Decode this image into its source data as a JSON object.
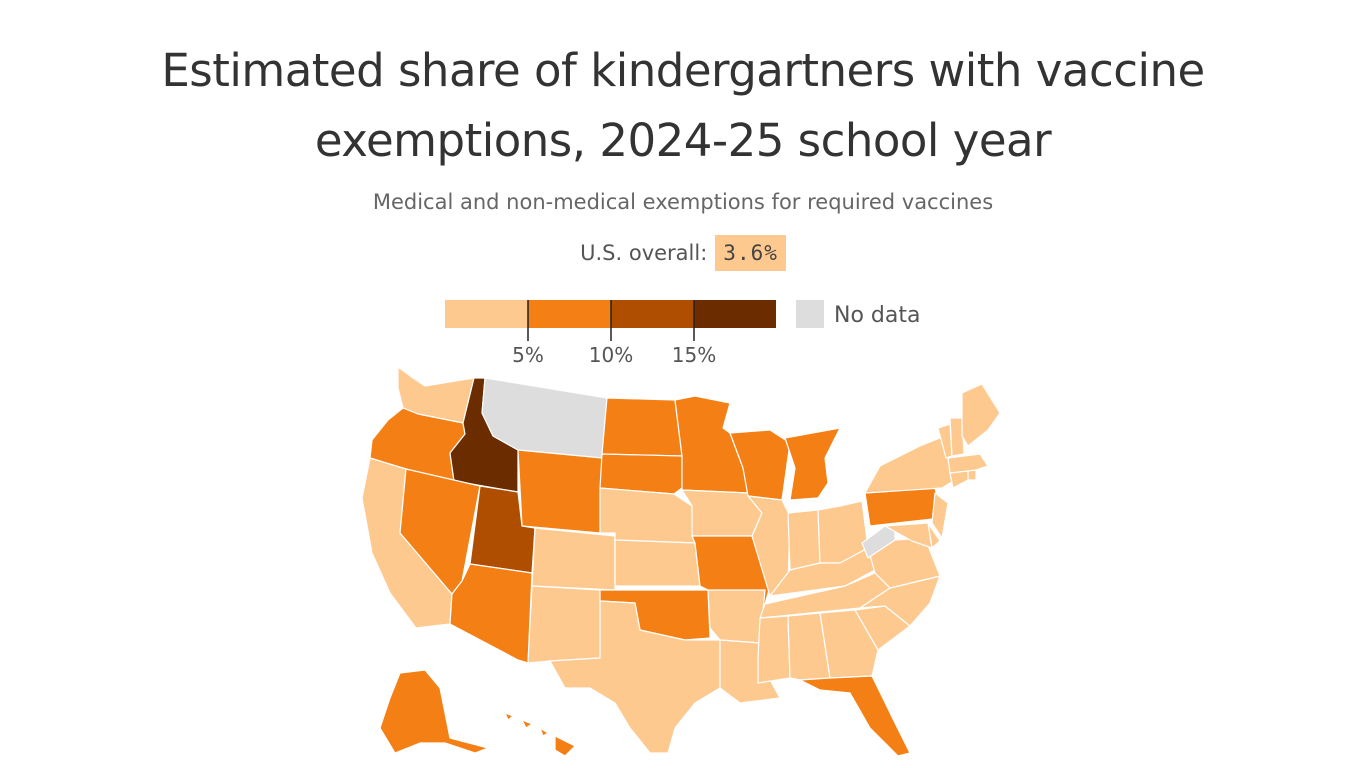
{
  "title_line1": "Estimated share of kindergartners with vaccine",
  "title_line2": "exemptions, 2024-25 school year",
  "subtitle": "Medical and non-medical exemptions for required vaccines",
  "overall": {
    "label": "U.S. overall:",
    "value": "3.6%"
  },
  "legend": {
    "bins": [
      {
        "range": "0–5%",
        "color": "#fec98f"
      },
      {
        "range": "5–10%",
        "color": "#f47f14"
      },
      {
        "range": "10–15%",
        "color": "#b04e00"
      },
      {
        "range": "15%+",
        "color": "#6b2c00"
      }
    ],
    "ticks": [
      "5%",
      "10%",
      "15%"
    ],
    "no_data": {
      "label": "No data",
      "color": "#dddddd"
    }
  },
  "map": {
    "color_scale": {
      "low": "#fec98f",
      "mid": "#f47f14",
      "high": "#b04e00",
      "very_high": "#6b2c00",
      "no_data": "#dddddd"
    },
    "states": [
      {
        "id": "WA",
        "name": "Washington",
        "bin": "low"
      },
      {
        "id": "OR",
        "name": "Oregon",
        "bin": "mid"
      },
      {
        "id": "CA",
        "name": "California",
        "bin": "low"
      },
      {
        "id": "ID",
        "name": "Idaho",
        "bin": "very_high"
      },
      {
        "id": "NV",
        "name": "Nevada",
        "bin": "mid"
      },
      {
        "id": "MT",
        "name": "Montana",
        "bin": "no_data"
      },
      {
        "id": "WY",
        "name": "Wyoming",
        "bin": "mid"
      },
      {
        "id": "UT",
        "name": "Utah",
        "bin": "high"
      },
      {
        "id": "AZ",
        "name": "Arizona",
        "bin": "mid"
      },
      {
        "id": "CO",
        "name": "Colorado",
        "bin": "low"
      },
      {
        "id": "NM",
        "name": "New Mexico",
        "bin": "low"
      },
      {
        "id": "ND",
        "name": "North Dakota",
        "bin": "mid"
      },
      {
        "id": "SD",
        "name": "South Dakota",
        "bin": "mid"
      },
      {
        "id": "NE",
        "name": "Nebraska",
        "bin": "low"
      },
      {
        "id": "KS",
        "name": "Kansas",
        "bin": "low"
      },
      {
        "id": "OK",
        "name": "Oklahoma",
        "bin": "mid"
      },
      {
        "id": "TX",
        "name": "Texas",
        "bin": "low"
      },
      {
        "id": "MN",
        "name": "Minnesota",
        "bin": "mid"
      },
      {
        "id": "IA",
        "name": "Iowa",
        "bin": "low"
      },
      {
        "id": "MO",
        "name": "Missouri",
        "bin": "mid"
      },
      {
        "id": "AR",
        "name": "Arkansas",
        "bin": "low"
      },
      {
        "id": "LA",
        "name": "Louisiana",
        "bin": "low"
      },
      {
        "id": "WI",
        "name": "Wisconsin",
        "bin": "mid"
      },
      {
        "id": "IL",
        "name": "Illinois",
        "bin": "low"
      },
      {
        "id": "MI",
        "name": "Michigan",
        "bin": "mid"
      },
      {
        "id": "IN",
        "name": "Indiana",
        "bin": "low"
      },
      {
        "id": "OH",
        "name": "Ohio",
        "bin": "low"
      },
      {
        "id": "KY",
        "name": "Kentucky",
        "bin": "low"
      },
      {
        "id": "TN",
        "name": "Tennessee",
        "bin": "low"
      },
      {
        "id": "MS",
        "name": "Mississippi",
        "bin": "low"
      },
      {
        "id": "AL",
        "name": "Alabama",
        "bin": "low"
      },
      {
        "id": "GA",
        "name": "Georgia",
        "bin": "low"
      },
      {
        "id": "FL",
        "name": "Florida",
        "bin": "mid"
      },
      {
        "id": "SC",
        "name": "South Carolina",
        "bin": "low"
      },
      {
        "id": "NC",
        "name": "North Carolina",
        "bin": "low"
      },
      {
        "id": "VA",
        "name": "Virginia",
        "bin": "low"
      },
      {
        "id": "WV",
        "name": "West Virginia",
        "bin": "no_data"
      },
      {
        "id": "PA",
        "name": "Pennsylvania",
        "bin": "mid"
      },
      {
        "id": "NY",
        "name": "New York",
        "bin": "low"
      },
      {
        "id": "NJ",
        "name": "New Jersey",
        "bin": "low"
      },
      {
        "id": "DE",
        "name": "Delaware",
        "bin": "low"
      },
      {
        "id": "MD",
        "name": "Maryland",
        "bin": "low"
      },
      {
        "id": "CT",
        "name": "Connecticut",
        "bin": "low"
      },
      {
        "id": "RI",
        "name": "Rhode Island",
        "bin": "low"
      },
      {
        "id": "MA",
        "name": "Massachusetts",
        "bin": "low"
      },
      {
        "id": "VT",
        "name": "Vermont",
        "bin": "low"
      },
      {
        "id": "NH",
        "name": "New Hampshire",
        "bin": "low"
      },
      {
        "id": "ME",
        "name": "Maine",
        "bin": "low"
      },
      {
        "id": "AK",
        "name": "Alaska",
        "bin": "mid"
      },
      {
        "id": "HI",
        "name": "Hawaii",
        "bin": "mid"
      }
    ]
  }
}
